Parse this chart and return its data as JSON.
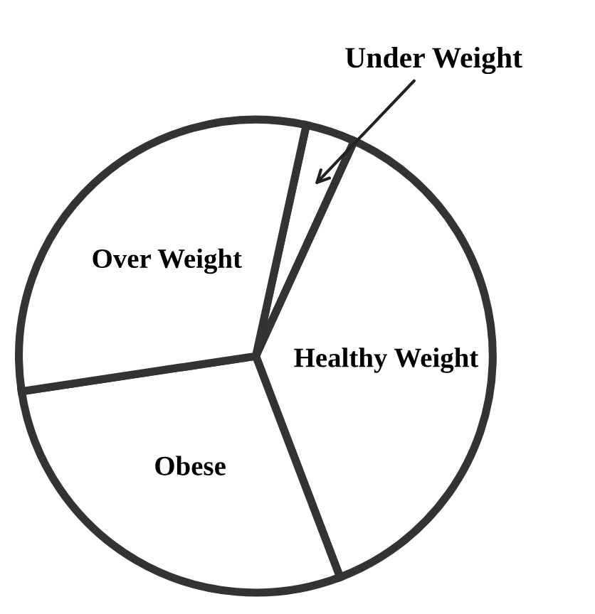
{
  "chart_data": {
    "type": "pie",
    "categories": [
      "Under Weight",
      "Healthy Weight",
      "Obese",
      "Over Weight"
    ],
    "values": [
      3.4,
      37.4,
      28.4,
      30.8
    ],
    "colors": [
      "#ffffff",
      "#ffffff",
      "#ffffff",
      "#ffffff"
    ],
    "legend": false
  }
}
